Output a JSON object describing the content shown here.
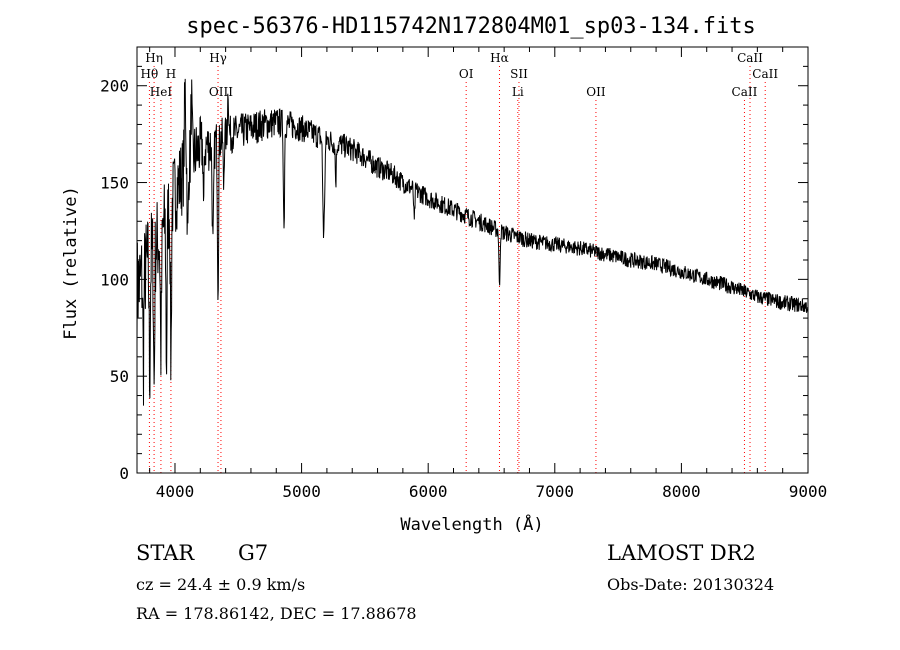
{
  "chart_data": {
    "type": "line",
    "title": "spec-56376-HD115742N172804M01_sp03-134.fits",
    "xlabel": "Wavelength (Å)",
    "ylabel": "Flux (relative)",
    "xlim": [
      3700,
      9000
    ],
    "ylim": [
      0,
      220
    ],
    "x_ticks": [
      4000,
      5000,
      6000,
      7000,
      8000,
      9000
    ],
    "y_ticks": [
      0,
      50,
      100,
      150,
      200
    ],
    "grid": false,
    "line_color": "#000000",
    "marker_color": "#ff0000",
    "continuum": {
      "x": [
        3700,
        3800,
        3900,
        4000,
        4100,
        4200,
        4300,
        4400,
        4500,
        4600,
        4700,
        4800,
        4900,
        5000,
        5100,
        5200,
        5300,
        5400,
        5500,
        5600,
        5700,
        5800,
        5900,
        6000,
        6100,
        6200,
        6300,
        6400,
        6500,
        6600,
        6700,
        6800,
        6900,
        7000,
        7200,
        7400,
        7600,
        7800,
        8000,
        8200,
        8400,
        8600,
        8800,
        9000
      ],
      "y": [
        95,
        110,
        125,
        145,
        160,
        168,
        170,
        174,
        176,
        178,
        180,
        181,
        180,
        178,
        175,
        172,
        170,
        167,
        163,
        158,
        155,
        150,
        146,
        142,
        139,
        136,
        133,
        130,
        127,
        124,
        122,
        120,
        119,
        118,
        116,
        113,
        110,
        108,
        104,
        100,
        96,
        91,
        88,
        86
      ]
    },
    "absorption_lines": [
      {
        "x": 3750,
        "depth": 45,
        "width": 6
      },
      {
        "x": 3800,
        "depth": 60,
        "width": 6
      },
      {
        "x": 3835,
        "depth": 70,
        "width": 6
      },
      {
        "x": 3889,
        "depth": 60,
        "width": 7
      },
      {
        "x": 3933,
        "depth": 75,
        "width": 6
      },
      {
        "x": 3968,
        "depth": 80,
        "width": 6
      },
      {
        "x": 4101,
        "depth": 40,
        "width": 6
      },
      {
        "x": 4227,
        "depth": 35,
        "width": 5
      },
      {
        "x": 4300,
        "depth": 55,
        "width": 8
      },
      {
        "x": 4340,
        "depth": 75,
        "width": 6
      },
      {
        "x": 4384,
        "depth": 25,
        "width": 5
      },
      {
        "x": 4861,
        "depth": 55,
        "width": 6
      },
      {
        "x": 5175,
        "depth": 50,
        "width": 10
      },
      {
        "x": 5270,
        "depth": 20,
        "width": 6
      },
      {
        "x": 5890,
        "depth": 18,
        "width": 6
      },
      {
        "x": 6563,
        "depth": 30,
        "width": 6
      }
    ],
    "emission_spikes": [
      {
        "x": 4080,
        "height": 40,
        "width": 8
      },
      {
        "x": 4130,
        "height": 30,
        "width": 6
      },
      {
        "x": 4420,
        "height": 25,
        "width": 6
      }
    ],
    "noise_amplitude": {
      "x": [
        3700,
        4000,
        4400,
        5000,
        6000,
        7000,
        8000,
        9000
      ],
      "y": [
        28,
        22,
        10,
        7,
        5,
        4,
        4,
        4
      ]
    },
    "line_markers": [
      {
        "label": "Hη",
        "x": 3835,
        "row": 0
      },
      {
        "label": "Hθ",
        "x": 3798,
        "row": 1
      },
      {
        "label": "H",
        "x": 3968,
        "row": 1
      },
      {
        "label": "HeI",
        "x": 3889,
        "row": 2
      },
      {
        "label": "Hγ",
        "x": 4340,
        "row": 0
      },
      {
        "label": "OIII",
        "x": 4363,
        "row": 2
      },
      {
        "label": "OI",
        "x": 6300,
        "row": 1
      },
      {
        "label": "Hα",
        "x": 6563,
        "row": 0
      },
      {
        "label": "SII",
        "x": 6717,
        "row": 1
      },
      {
        "label": "Li",
        "x": 6708,
        "row": 2
      },
      {
        "label": "OII",
        "x": 7325,
        "row": 2
      },
      {
        "label": "CaII",
        "x": 8542,
        "row": 0
      },
      {
        "label": "CaII",
        "x": 8662,
        "row": 1
      },
      {
        "label": "CaII",
        "x": 8498,
        "row": 2
      }
    ]
  },
  "info": {
    "object_class": "STAR",
    "subclass": "G7",
    "survey": "LAMOST DR2",
    "redshift": "cz = 24.4 ± 0.9 km/s",
    "obs_date": "Obs-Date: 20130324",
    "coordinates": "RA = 178.86142, DEC =  17.88678"
  }
}
